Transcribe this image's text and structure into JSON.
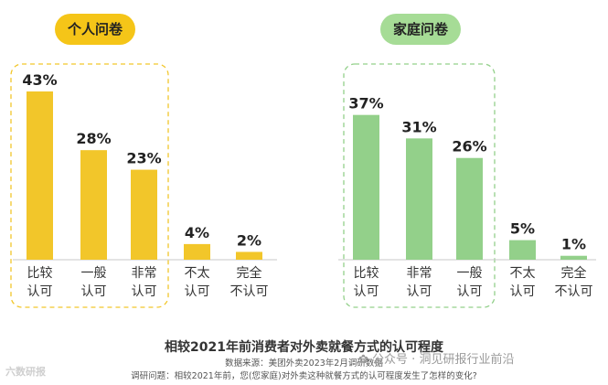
{
  "chart_data": [
    {
      "type": "bar",
      "title": "个人问卷",
      "categories": [
        [
          "比较",
          "认可"
        ],
        [
          "一般",
          "认可"
        ],
        [
          "非常",
          "认可"
        ],
        [
          "不太",
          "认可"
        ],
        [
          "完全",
          "不认可"
        ]
      ],
      "values": [
        43,
        28,
        23,
        4,
        2
      ],
      "value_labels": [
        "43%",
        "28%",
        "23%",
        "4%",
        "2%"
      ],
      "highlight_group": [
        0,
        2
      ],
      "bar_color": "#f2c62a",
      "pill_color": "#f5c518",
      "ylim": [
        0,
        50
      ]
    },
    {
      "type": "bar",
      "title": "家庭问卷",
      "categories": [
        [
          "比较",
          "认可"
        ],
        [
          "非常",
          "认可"
        ],
        [
          "一般",
          "认可"
        ],
        [
          "不太",
          "认可"
        ],
        [
          "完全",
          "不认可"
        ]
      ],
      "values": [
        37,
        31,
        26,
        5,
        1
      ],
      "value_labels": [
        "37%",
        "31%",
        "26%",
        "5%",
        "1%"
      ],
      "highlight_group": [
        0,
        2
      ],
      "bar_color": "#93d08a",
      "pill_color": "#a6dc96",
      "ylim": [
        0,
        50
      ]
    }
  ],
  "footer": {
    "title": "相较2021年前消费者对外卖就餐方式的认可程度",
    "source": "数据来源：美团外卖2023年2月调研数据",
    "question": "调研问题：相较2021年前，您(您家庭)对外卖这种就餐方式的认可程度发生了怎样的变化?"
  },
  "watermark": {
    "right": "公众号 · 洞见研报行业前沿",
    "left": "六数研报"
  }
}
